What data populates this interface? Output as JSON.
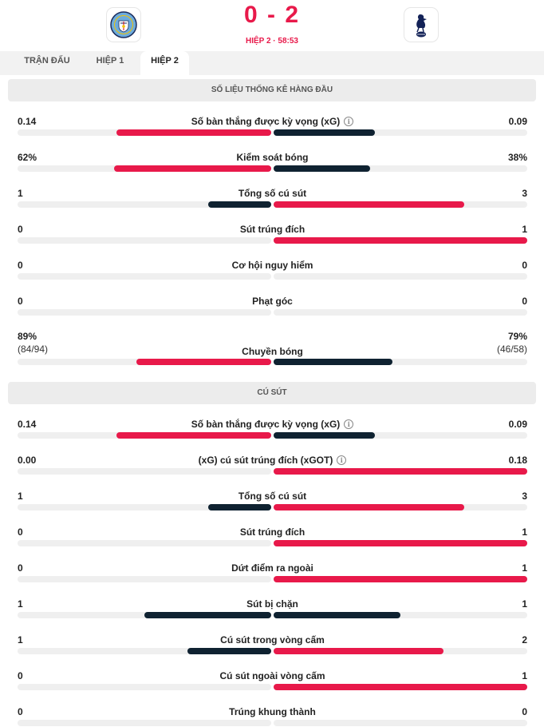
{
  "match": {
    "score": "0 - 2",
    "period": "HIỆP 2 · 58:53",
    "home_logo_icon": "manchester-city-crest-icon",
    "away_logo_icon": "tottenham-cockerel-icon"
  },
  "tabs": [
    {
      "label": "TRẬN ĐẤU",
      "active": false
    },
    {
      "label": "HIỆP 1",
      "active": false
    },
    {
      "label": "HIỆP 2",
      "active": true
    }
  ],
  "colors": {
    "win": "#e8194a",
    "lose": "#0f2231",
    "track": "#efefef"
  },
  "sections": [
    {
      "title": "SỐ LIỆU THỐNG KÊ HÀNG ĐẦU",
      "stats": [
        {
          "label": "Số bàn thắng được kỳ vọng (xG)",
          "home": "0.14",
          "away": "0.09",
          "home_share": 0.61,
          "away_share": 0.4,
          "info": true
        },
        {
          "label": "Kiểm soát bóng",
          "home": "62%",
          "away": "38%",
          "home_share": 0.62,
          "away_share": 0.38
        },
        {
          "label": "Tổng số cú sút",
          "home": "1",
          "away": "3",
          "home_share": 0.25,
          "away_share": 0.75
        },
        {
          "label": "Sút trúng đích",
          "home": "0",
          "away": "1",
          "home_share": 0,
          "away_share": 1
        },
        {
          "label": "Cơ hội nguy hiểm",
          "home": "0",
          "away": "0",
          "home_share": 0,
          "away_share": 0
        },
        {
          "label": "Phạt góc",
          "home": "0",
          "away": "0",
          "home_share": 0,
          "away_share": 0
        },
        {
          "label": "Chuyền bóng",
          "home": "89%",
          "away": "79%",
          "home_sub": "(84/94)",
          "away_sub": "(46/58)",
          "home_share": 0.53,
          "away_share": 0.47
        }
      ]
    },
    {
      "title": "CÚ SÚT",
      "stats": [
        {
          "label": "Số bàn thắng được kỳ vọng (xG)",
          "home": "0.14",
          "away": "0.09",
          "home_share": 0.61,
          "away_share": 0.4,
          "info": true
        },
        {
          "label": "(xG) cú sút trúng đích (xGOT)",
          "home": "0.00",
          "away": "0.18",
          "home_share": 0,
          "away_share": 1,
          "info": true
        },
        {
          "label": "Tổng số cú sút",
          "home": "1",
          "away": "3",
          "home_share": 0.25,
          "away_share": 0.75
        },
        {
          "label": "Sút trúng đích",
          "home": "0",
          "away": "1",
          "home_share": 0,
          "away_share": 1
        },
        {
          "label": "Dứt điểm ra ngoài",
          "home": "0",
          "away": "1",
          "home_share": 0,
          "away_share": 1
        },
        {
          "label": "Sút bị chặn",
          "home": "1",
          "away": "1",
          "home_share": 0.5,
          "away_share": 0.5
        },
        {
          "label": "Cú sút trong vòng cấm",
          "home": "1",
          "away": "2",
          "home_share": 0.33,
          "away_share": 0.67
        },
        {
          "label": "Cú sút ngoài vòng cấm",
          "home": "0",
          "away": "1",
          "home_share": 0,
          "away_share": 1
        },
        {
          "label": "Trúng khung thành",
          "home": "0",
          "away": "0",
          "home_share": 0,
          "away_share": 0
        }
      ]
    }
  ]
}
